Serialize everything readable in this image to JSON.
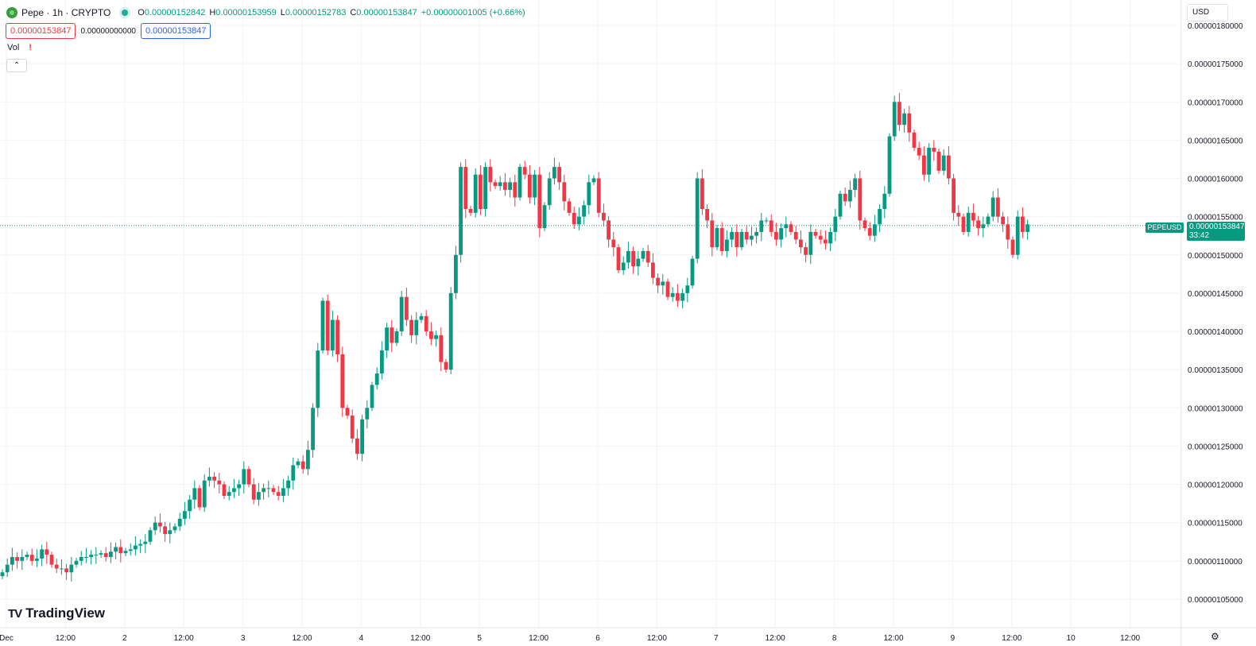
{
  "header": {
    "symbol_title": "Pepe · 1h · CRYPTO",
    "open_label": "O",
    "open": "0.00000152842",
    "high_label": "H",
    "high": "0.00000153959",
    "low_label": "L",
    "low": "0.00000152783",
    "close_label": "C",
    "close": "0.00000153847",
    "change": "+0.00000001005 (+0.66%)"
  },
  "quote": {
    "sell": "0.00000153847",
    "spread": "0.00000000000",
    "buy": "0.00000153847"
  },
  "volume_label": "Vol",
  "volume_warning": "!",
  "collapse_icon": "chevron-up-icon",
  "currency": "USD",
  "branding": "TradingView",
  "last_price_tag": {
    "symbol": "PEPEUSD",
    "price": "0.00000153847",
    "countdown": "33:42"
  },
  "colors": {
    "up": "#089981",
    "down": "#f23645",
    "grid": "#f0f3fa",
    "text": "#131722"
  },
  "chart_data": {
    "type": "candlestick",
    "title": "",
    "x_tick_labels": [
      "Dec",
      "12:00",
      "2",
      "12:00",
      "3",
      "12:00",
      "4",
      "12:00",
      "5",
      "12:00",
      "6",
      "12:00",
      "7",
      "12:00",
      "8",
      "12:00",
      "9",
      "12:00",
      "10",
      "12:00"
    ],
    "y_tick_labels": [
      "0.00000180000",
      "0.00000175000",
      "0.00000170000",
      "0.00000165000",
      "0.00000160000",
      "0.00000155000",
      "0.00000150000",
      "0.00000145000",
      "0.00000140000",
      "0.00000135000",
      "0.00000130000",
      "0.00000125000",
      "0.00000120000",
      "0.00000115000",
      "0.00000110000",
      "0.00000105000"
    ],
    "ylim": [
      1.03e-06,
      1.8e-06
    ],
    "last_price": 1.53847e-06,
    "series": [
      {
        "values_close": [
          1.085,
          1.095,
          1.105,
          1.1,
          1.105,
          1.108,
          1.1,
          1.103,
          1.115,
          1.108,
          1.095,
          1.09,
          1.09,
          1.085,
          1.095,
          1.1,
          1.105,
          1.105,
          1.108,
          1.108,
          1.11,
          1.105,
          1.112,
          1.118,
          1.11,
          1.113,
          1.115,
          1.12,
          1.122,
          1.125,
          1.14,
          1.15,
          1.145,
          1.135,
          1.14,
          1.145,
          1.155,
          1.165,
          1.18,
          1.195,
          1.17,
          1.205,
          1.21,
          1.205,
          1.2,
          1.185,
          1.19,
          1.195,
          1.2,
          1.22,
          1.2,
          1.18,
          1.19,
          1.195,
          1.195,
          1.19,
          1.185,
          1.195,
          1.205,
          1.225,
          1.23,
          1.22,
          1.245,
          1.3,
          1.375,
          1.44,
          1.375,
          1.415,
          1.37,
          1.3,
          1.29,
          1.26,
          1.24,
          1.285,
          1.3,
          1.33,
          1.345,
          1.375,
          1.405,
          1.385,
          1.4,
          1.445,
          1.415,
          1.395,
          1.415,
          1.42,
          1.4,
          1.39,
          1.395,
          1.36,
          1.35,
          1.45,
          1.5,
          1.615,
          1.56,
          1.555,
          1.605,
          1.56,
          1.615,
          1.595,
          1.59,
          1.595,
          1.585,
          1.595,
          1.575,
          1.615,
          1.605,
          1.575,
          1.605,
          1.535,
          1.565,
          1.6,
          1.615,
          1.595,
          1.57,
          1.555,
          1.54,
          1.55,
          1.565,
          1.595,
          1.6,
          1.555,
          1.545,
          1.52,
          1.51,
          1.48,
          1.49,
          1.505,
          1.485,
          1.495,
          1.505,
          1.49,
          1.47,
          1.46,
          1.465,
          1.445,
          1.45,
          1.44,
          1.45,
          1.46,
          1.495,
          1.6,
          1.56,
          1.545,
          1.51,
          1.535,
          1.505,
          1.52,
          1.53,
          1.51,
          1.53,
          1.52,
          1.525,
          1.53,
          1.545,
          1.545,
          1.53,
          1.52,
          1.535,
          1.54,
          1.53,
          1.52,
          1.51,
          1.5,
          1.53,
          1.525,
          1.52,
          1.515,
          1.53,
          1.55,
          1.58,
          1.57,
          1.585,
          1.6,
          1.545,
          1.535,
          1.525,
          1.54,
          1.56,
          1.58,
          1.655,
          1.7,
          1.67,
          1.685,
          1.66,
          1.64,
          1.63,
          1.605,
          1.64,
          1.635,
          1.61,
          1.63,
          1.6,
          1.555,
          1.55,
          1.53,
          1.555,
          1.545,
          1.535,
          1.54,
          1.55,
          1.575,
          1.55,
          1.54,
          1.52,
          1.5,
          1.55,
          1.53,
          1.54
        ]
      }
    ]
  }
}
